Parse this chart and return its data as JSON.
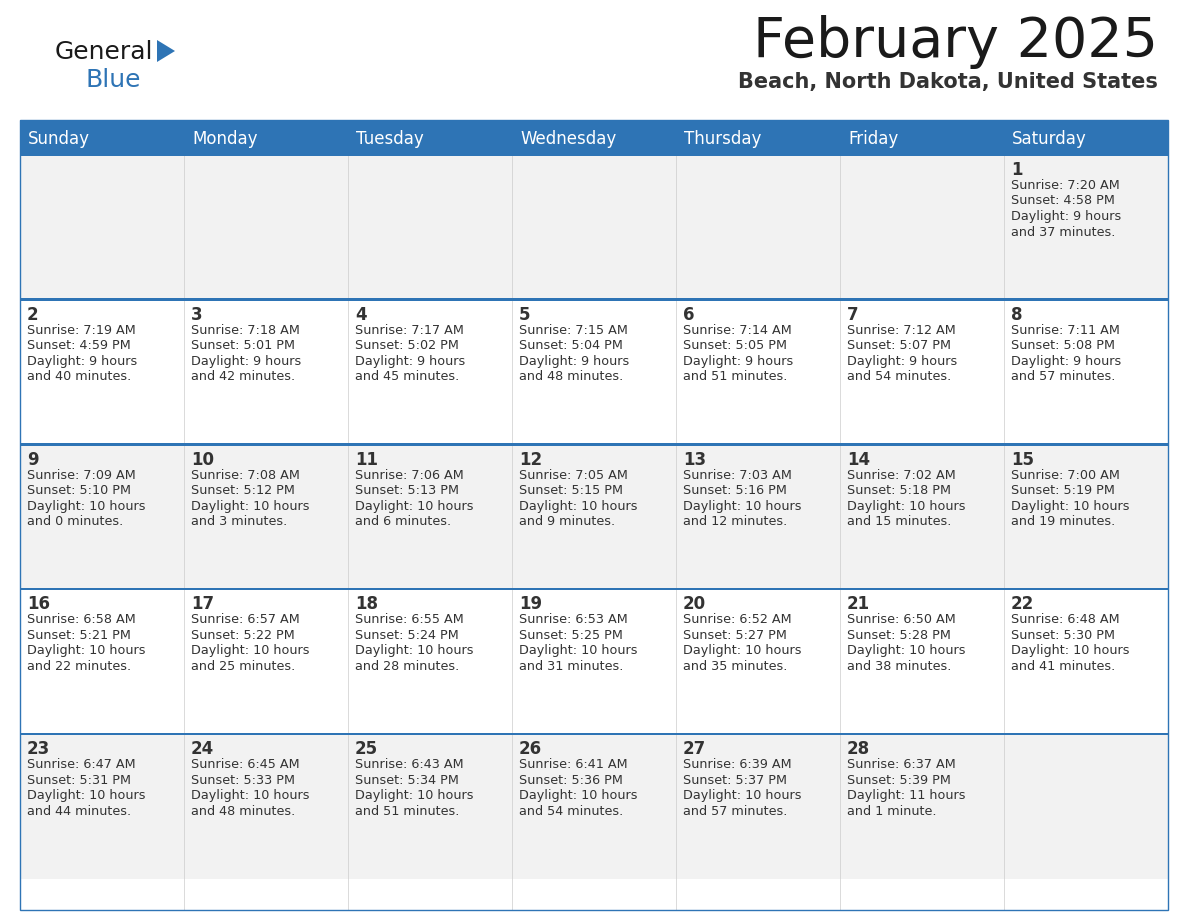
{
  "title": "February 2025",
  "subtitle": "Beach, North Dakota, United States",
  "days_of_week": [
    "Sunday",
    "Monday",
    "Tuesday",
    "Wednesday",
    "Thursday",
    "Friday",
    "Saturday"
  ],
  "header_bg": "#2E74B5",
  "header_text": "#FFFFFF",
  "cell_bg_odd": "#F2F2F2",
  "cell_bg_even": "#FFFFFF",
  "separator_color": "#2E74B5",
  "day_number_color": "#333333",
  "info_text_color": "#333333",
  "title_color": "#1a1a1a",
  "subtitle_color": "#333333",
  "logo_general_color": "#1a1a1a",
  "logo_blue_color": "#2E74B5",
  "fig_w": 11.88,
  "fig_h": 9.18,
  "dpi": 100,
  "weeks": [
    {
      "days": [
        {
          "date": null,
          "info": null
        },
        {
          "date": null,
          "info": null
        },
        {
          "date": null,
          "info": null
        },
        {
          "date": null,
          "info": null
        },
        {
          "date": null,
          "info": null
        },
        {
          "date": null,
          "info": null
        },
        {
          "date": 1,
          "info": "Sunrise: 7:20 AM\nSunset: 4:58 PM\nDaylight: 9 hours\nand 37 minutes."
        }
      ]
    },
    {
      "days": [
        {
          "date": 2,
          "info": "Sunrise: 7:19 AM\nSunset: 4:59 PM\nDaylight: 9 hours\nand 40 minutes."
        },
        {
          "date": 3,
          "info": "Sunrise: 7:18 AM\nSunset: 5:01 PM\nDaylight: 9 hours\nand 42 minutes."
        },
        {
          "date": 4,
          "info": "Sunrise: 7:17 AM\nSunset: 5:02 PM\nDaylight: 9 hours\nand 45 minutes."
        },
        {
          "date": 5,
          "info": "Sunrise: 7:15 AM\nSunset: 5:04 PM\nDaylight: 9 hours\nand 48 minutes."
        },
        {
          "date": 6,
          "info": "Sunrise: 7:14 AM\nSunset: 5:05 PM\nDaylight: 9 hours\nand 51 minutes."
        },
        {
          "date": 7,
          "info": "Sunrise: 7:12 AM\nSunset: 5:07 PM\nDaylight: 9 hours\nand 54 minutes."
        },
        {
          "date": 8,
          "info": "Sunrise: 7:11 AM\nSunset: 5:08 PM\nDaylight: 9 hours\nand 57 minutes."
        }
      ]
    },
    {
      "days": [
        {
          "date": 9,
          "info": "Sunrise: 7:09 AM\nSunset: 5:10 PM\nDaylight: 10 hours\nand 0 minutes."
        },
        {
          "date": 10,
          "info": "Sunrise: 7:08 AM\nSunset: 5:12 PM\nDaylight: 10 hours\nand 3 minutes."
        },
        {
          "date": 11,
          "info": "Sunrise: 7:06 AM\nSunset: 5:13 PM\nDaylight: 10 hours\nand 6 minutes."
        },
        {
          "date": 12,
          "info": "Sunrise: 7:05 AM\nSunset: 5:15 PM\nDaylight: 10 hours\nand 9 minutes."
        },
        {
          "date": 13,
          "info": "Sunrise: 7:03 AM\nSunset: 5:16 PM\nDaylight: 10 hours\nand 12 minutes."
        },
        {
          "date": 14,
          "info": "Sunrise: 7:02 AM\nSunset: 5:18 PM\nDaylight: 10 hours\nand 15 minutes."
        },
        {
          "date": 15,
          "info": "Sunrise: 7:00 AM\nSunset: 5:19 PM\nDaylight: 10 hours\nand 19 minutes."
        }
      ]
    },
    {
      "days": [
        {
          "date": 16,
          "info": "Sunrise: 6:58 AM\nSunset: 5:21 PM\nDaylight: 10 hours\nand 22 minutes."
        },
        {
          "date": 17,
          "info": "Sunrise: 6:57 AM\nSunset: 5:22 PM\nDaylight: 10 hours\nand 25 minutes."
        },
        {
          "date": 18,
          "info": "Sunrise: 6:55 AM\nSunset: 5:24 PM\nDaylight: 10 hours\nand 28 minutes."
        },
        {
          "date": 19,
          "info": "Sunrise: 6:53 AM\nSunset: 5:25 PM\nDaylight: 10 hours\nand 31 minutes."
        },
        {
          "date": 20,
          "info": "Sunrise: 6:52 AM\nSunset: 5:27 PM\nDaylight: 10 hours\nand 35 minutes."
        },
        {
          "date": 21,
          "info": "Sunrise: 6:50 AM\nSunset: 5:28 PM\nDaylight: 10 hours\nand 38 minutes."
        },
        {
          "date": 22,
          "info": "Sunrise: 6:48 AM\nSunset: 5:30 PM\nDaylight: 10 hours\nand 41 minutes."
        }
      ]
    },
    {
      "days": [
        {
          "date": 23,
          "info": "Sunrise: 6:47 AM\nSunset: 5:31 PM\nDaylight: 10 hours\nand 44 minutes."
        },
        {
          "date": 24,
          "info": "Sunrise: 6:45 AM\nSunset: 5:33 PM\nDaylight: 10 hours\nand 48 minutes."
        },
        {
          "date": 25,
          "info": "Sunrise: 6:43 AM\nSunset: 5:34 PM\nDaylight: 10 hours\nand 51 minutes."
        },
        {
          "date": 26,
          "info": "Sunrise: 6:41 AM\nSunset: 5:36 PM\nDaylight: 10 hours\nand 54 minutes."
        },
        {
          "date": 27,
          "info": "Sunrise: 6:39 AM\nSunset: 5:37 PM\nDaylight: 10 hours\nand 57 minutes."
        },
        {
          "date": 28,
          "info": "Sunrise: 6:37 AM\nSunset: 5:39 PM\nDaylight: 11 hours\nand 1 minute."
        },
        {
          "date": null,
          "info": null
        }
      ]
    }
  ]
}
